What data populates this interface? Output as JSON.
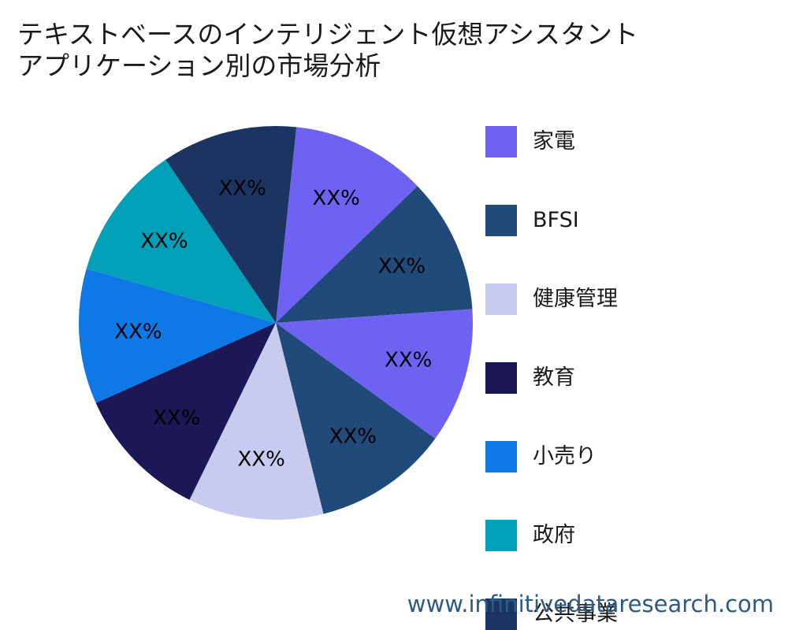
{
  "title": {
    "line1": "テキストベースのインテリジェント仮想アシスタント",
    "line2": "アプリケーション別の市場分析"
  },
  "chart_data": {
    "type": "pie",
    "slices": [
      {
        "category": "家電",
        "value": 11.1,
        "label": "XX%",
        "color": "#6e62f2"
      },
      {
        "category": "BFSI",
        "value": 11.1,
        "label": "XX%",
        "color": "#1f4a7a"
      },
      {
        "category": "家電",
        "value": 11.1,
        "label": "XX%",
        "color": "#6e62f2"
      },
      {
        "category": "BFSI",
        "value": 11.1,
        "label": "XX%",
        "color": "#1f4a7a"
      },
      {
        "category": "健康管理",
        "value": 11.1,
        "label": "XX%",
        "color": "#c9caf0"
      },
      {
        "category": "教育",
        "value": 11.1,
        "label": "XX%",
        "color": "#1c1757"
      },
      {
        "category": "小売り",
        "value": 11.1,
        "label": "XX%",
        "color": "#0e78e5"
      },
      {
        "category": "政府",
        "value": 11.1,
        "label": "XX%",
        "color": "#00a0b8"
      },
      {
        "category": "公共事業",
        "value": 11.1,
        "label": "XX%",
        "color": "#1b3461"
      }
    ],
    "legend": [
      {
        "label": "家電",
        "color": "#6e62f2"
      },
      {
        "label": "BFSI",
        "color": "#1f4a7a"
      },
      {
        "label": "健康管理",
        "color": "#c9caf0"
      },
      {
        "label": "教育",
        "color": "#1c1757"
      },
      {
        "label": "小売り",
        "color": "#0e78e5"
      },
      {
        "label": "政府",
        "color": "#00a0b8"
      },
      {
        "label": "公共事業",
        "color": "#1b3461"
      }
    ],
    "legend_position": "right"
  },
  "watermark": "www.infinitivedataresearch.com"
}
